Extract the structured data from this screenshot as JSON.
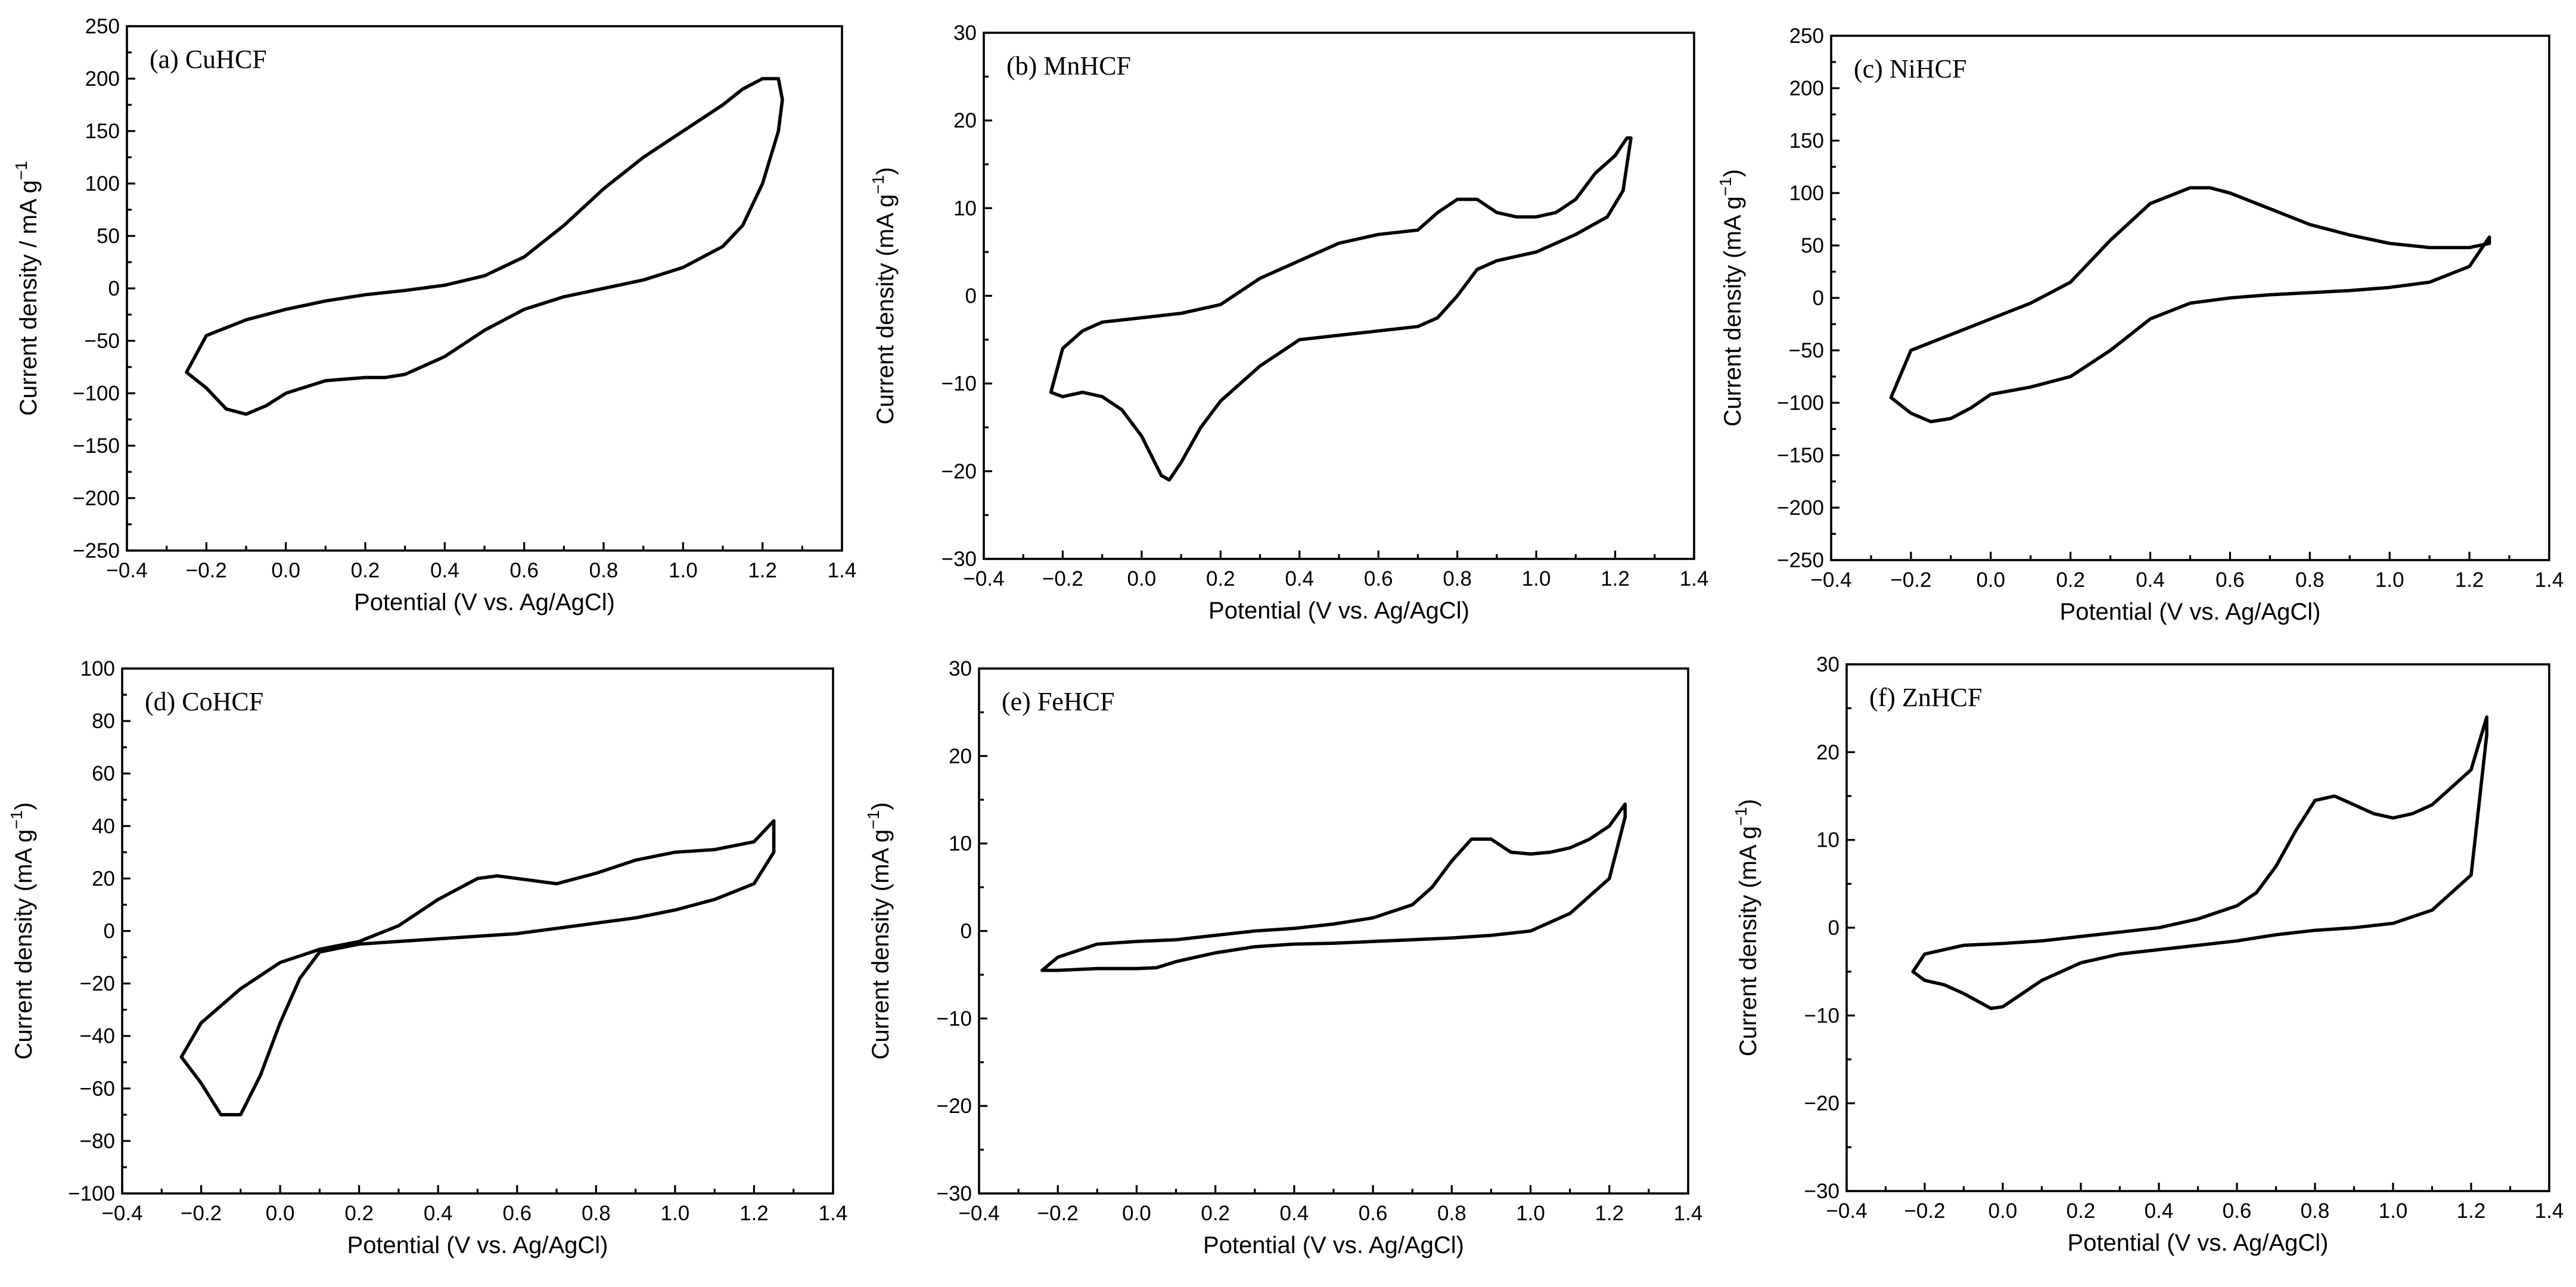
{
  "chart_data": [
    {
      "type": "line",
      "title": "(a) CuHCF",
      "xlabel": "Potential (V vs. Ag/AgCl)",
      "ylabel_main": "Current density / mA g",
      "ylabel_sup": "−1",
      "xlim": [
        -0.4,
        1.4
      ],
      "ylim": [
        -250,
        250
      ],
      "xticks": [
        -0.4,
        -0.2,
        0.0,
        0.2,
        0.4,
        0.6,
        0.8,
        1.0,
        1.2,
        1.4
      ],
      "yticks": [
        -250,
        -200,
        -150,
        -100,
        -50,
        0,
        50,
        100,
        150,
        200,
        250
      ],
      "xtick_labels": [
        "−0.4",
        "−0.2",
        "0.0",
        "0.2",
        "0.4",
        "0.6",
        "0.8",
        "1.0",
        "1.2",
        "1.4"
      ],
      "ytick_labels": [
        "−250",
        "−200",
        "−150",
        "−100",
        "−50",
        "0",
        "50",
        "100",
        "150",
        "200",
        "250"
      ],
      "series": [
        {
          "x": [
            -0.25,
            -0.2,
            -0.1,
            0.0,
            0.1,
            0.2,
            0.3,
            0.4,
            0.5,
            0.6,
            0.7,
            0.8,
            0.9,
            1.0,
            1.1,
            1.15,
            1.2,
            1.24,
            1.25,
            1.24,
            1.2,
            1.15,
            1.1,
            1.0,
            0.9,
            0.8,
            0.7,
            0.6,
            0.5,
            0.4,
            0.3,
            0.25,
            0.2,
            0.1,
            0.0,
            -0.05,
            -0.1,
            -0.15,
            -0.2,
            -0.25
          ],
          "y": [
            -80,
            -45,
            -30,
            -20,
            -12,
            -6,
            -2,
            3,
            12,
            30,
            60,
            95,
            125,
            150,
            175,
            190,
            200,
            200,
            180,
            150,
            100,
            60,
            40,
            20,
            8,
            0,
            -8,
            -20,
            -40,
            -65,
            -82,
            -85,
            -85,
            -88,
            -100,
            -112,
            -120,
            -115,
            -95,
            -80
          ]
        }
      ]
    },
    {
      "type": "line",
      "title": "(b) MnHCF",
      "xlabel": "Potential (V vs. Ag/AgCl)",
      "ylabel_main": "Current density (mA g",
      "ylabel_sup": "−1",
      "ylabel_close": ")",
      "xlim": [
        -0.4,
        1.4
      ],
      "ylim": [
        -30,
        30
      ],
      "xticks": [
        -0.4,
        -0.2,
        0.0,
        0.2,
        0.4,
        0.6,
        0.8,
        1.0,
        1.2,
        1.4
      ],
      "yticks": [
        -30,
        -20,
        -10,
        0,
        10,
        20,
        30
      ],
      "xtick_labels": [
        "−0.4",
        "−0.2",
        "0.0",
        "0.2",
        "0.4",
        "0.6",
        "0.8",
        "1.0",
        "1.2",
        "1.4"
      ],
      "ytick_labels": [
        "−30",
        "−20",
        "−10",
        "0",
        "10",
        "20",
        "30"
      ],
      "series": [
        {
          "x": [
            -0.23,
            -0.2,
            -0.15,
            -0.1,
            0.0,
            0.1,
            0.2,
            0.3,
            0.4,
            0.5,
            0.6,
            0.7,
            0.75,
            0.8,
            0.85,
            0.9,
            0.95,
            1.0,
            1.05,
            1.1,
            1.15,
            1.2,
            1.23,
            1.24,
            1.22,
            1.18,
            1.1,
            1.0,
            0.9,
            0.85,
            0.8,
            0.75,
            0.7,
            0.6,
            0.5,
            0.4,
            0.3,
            0.2,
            0.15,
            0.1,
            0.07,
            0.05,
            0.0,
            -0.05,
            -0.1,
            -0.15,
            -0.2,
            -0.23
          ],
          "y": [
            -11,
            -6,
            -4,
            -3,
            -2.5,
            -2,
            -1,
            2,
            4,
            6,
            7,
            7.5,
            9.5,
            11,
            11,
            9.5,
            9,
            9,
            9.5,
            11,
            14,
            16,
            18,
            18,
            12,
            9,
            7,
            5,
            4,
            3,
            0,
            -2.5,
            -3.5,
            -4,
            -4.5,
            -5,
            -8,
            -12,
            -15,
            -19,
            -21,
            -20.5,
            -16,
            -13,
            -11.5,
            -11,
            -11.5,
            -11
          ]
        }
      ]
    },
    {
      "type": "line",
      "title": "(c) NiHCF",
      "xlabel": "Potential (V vs. Ag/AgCl)",
      "ylabel_main": "Current density (mA g",
      "ylabel_sup": "−1",
      "ylabel_close": ")",
      "xlim": [
        -0.4,
        1.4
      ],
      "ylim": [
        -250,
        250
      ],
      "xticks": [
        -0.4,
        -0.2,
        0.0,
        0.2,
        0.4,
        0.6,
        0.8,
        1.0,
        1.2,
        1.4
      ],
      "yticks": [
        -250,
        -200,
        -150,
        -100,
        -50,
        0,
        50,
        100,
        150,
        200,
        250
      ],
      "xtick_labels": [
        "−0.4",
        "−0.2",
        "0.0",
        "0.2",
        "0.4",
        "0.6",
        "0.8",
        "1.0",
        "1.2",
        "1.4"
      ],
      "ytick_labels": [
        "−250",
        "−200",
        "−150",
        "−100",
        "−50",
        "0",
        "50",
        "100",
        "150",
        "200",
        "250"
      ],
      "series": [
        {
          "x": [
            -0.25,
            -0.2,
            -0.1,
            0.0,
            0.1,
            0.2,
            0.3,
            0.4,
            0.5,
            0.55,
            0.6,
            0.7,
            0.8,
            0.9,
            1.0,
            1.1,
            1.2,
            1.25,
            1.25,
            1.2,
            1.1,
            1.0,
            0.9,
            0.8,
            0.7,
            0.6,
            0.5,
            0.4,
            0.3,
            0.2,
            0.1,
            0.0,
            -0.05,
            -0.1,
            -0.15,
            -0.2,
            -0.25
          ],
          "y": [
            -95,
            -50,
            -35,
            -20,
            -5,
            15,
            55,
            90,
            105,
            105,
            100,
            85,
            70,
            60,
            52,
            48,
            48,
            52,
            58,
            30,
            15,
            10,
            7,
            5,
            3,
            0,
            -5,
            -20,
            -50,
            -75,
            -85,
            -92,
            -105,
            -115,
            -118,
            -110,
            -95
          ]
        }
      ]
    },
    {
      "type": "line",
      "title": "(d) CoHCF",
      "xlabel": "Potential (V vs. Ag/AgCl)",
      "ylabel_main": "Current density (mA g",
      "ylabel_sup": "−1",
      "ylabel_close": ")",
      "xlim": [
        -0.4,
        1.4
      ],
      "ylim": [
        -100,
        100
      ],
      "xticks": [
        -0.4,
        -0.2,
        0.0,
        0.2,
        0.4,
        0.6,
        0.8,
        1.0,
        1.2,
        1.4
      ],
      "yticks": [
        -100,
        -80,
        -60,
        -40,
        -20,
        0,
        20,
        40,
        60,
        80,
        100
      ],
      "xtick_labels": [
        "−0.4",
        "−0.2",
        "0.0",
        "0.2",
        "0.4",
        "0.6",
        "0.8",
        "1.0",
        "1.2",
        "1.4"
      ],
      "ytick_labels": [
        "−100",
        "−80",
        "−60",
        "−40",
        "−20",
        "0",
        "20",
        "40",
        "60",
        "80",
        "100"
      ],
      "series": [
        {
          "x": [
            -0.25,
            -0.2,
            -0.1,
            0.0,
            0.1,
            0.2,
            0.3,
            0.4,
            0.5,
            0.55,
            0.6,
            0.7,
            0.8,
            0.9,
            1.0,
            1.1,
            1.2,
            1.25,
            1.25,
            1.2,
            1.1,
            1.0,
            0.9,
            0.8,
            0.7,
            0.6,
            0.5,
            0.4,
            0.3,
            0.2,
            0.1,
            0.05,
            0.0,
            -0.05,
            -0.1,
            -0.15,
            -0.2,
            -0.25
          ],
          "y": [
            -48,
            -35,
            -22,
            -12,
            -7,
            -4,
            2,
            12,
            20,
            21,
            20,
            18,
            22,
            27,
            30,
            31,
            34,
            42,
            30,
            18,
            12,
            8,
            5,
            3,
            1,
            -1,
            -2,
            -3,
            -4,
            -5,
            -8,
            -18,
            -35,
            -55,
            -70,
            -70,
            -58,
            -48
          ]
        }
      ]
    },
    {
      "type": "line",
      "title": "(e) FeHCF",
      "xlabel": "Potential (V vs. Ag/AgCl)",
      "ylabel_main": "Current density (mA g",
      "ylabel_sup": "−1",
      "ylabel_close": ")",
      "xlim": [
        -0.4,
        1.4
      ],
      "ylim": [
        -30,
        30
      ],
      "xticks": [
        -0.4,
        -0.2,
        0.0,
        0.2,
        0.4,
        0.6,
        0.8,
        1.0,
        1.2,
        1.4
      ],
      "yticks": [
        -30,
        -20,
        -10,
        0,
        10,
        20,
        30
      ],
      "xtick_labels": [
        "−0.4",
        "−0.2",
        "0.0",
        "0.2",
        "0.4",
        "0.6",
        "0.8",
        "1.0",
        "1.2",
        "1.4"
      ],
      "ytick_labels": [
        "−30",
        "−20",
        "−10",
        "0",
        "10",
        "20",
        "30"
      ],
      "series": [
        {
          "x": [
            -0.24,
            -0.2,
            -0.1,
            0.0,
            0.1,
            0.2,
            0.3,
            0.4,
            0.5,
            0.6,
            0.7,
            0.75,
            0.8,
            0.85,
            0.9,
            0.95,
            1.0,
            1.05,
            1.1,
            1.15,
            1.2,
            1.24,
            1.24,
            1.2,
            1.1,
            1.0,
            0.9,
            0.8,
            0.7,
            0.6,
            0.5,
            0.4,
            0.3,
            0.2,
            0.15,
            0.1,
            0.05,
            0.0,
            -0.1,
            -0.2,
            -0.24
          ],
          "y": [
            -4.5,
            -3,
            -1.5,
            -1.2,
            -1,
            -0.5,
            0,
            0.3,
            0.8,
            1.5,
            3,
            5,
            8,
            10.5,
            10.5,
            9,
            8.8,
            9,
            9.5,
            10.5,
            12,
            14.5,
            13,
            6,
            2,
            0,
            -0.5,
            -0.8,
            -1,
            -1.2,
            -1.4,
            -1.5,
            -1.8,
            -2.5,
            -3,
            -3.5,
            -4.2,
            -4.3,
            -4.3,
            -4.5,
            -4.5
          ]
        }
      ]
    },
    {
      "type": "line",
      "title": "(f) ZnHCF",
      "xlabel": "Potential (V vs. Ag/AgCl)",
      "ylabel_main": "Current density (mA g",
      "ylabel_sup": "−1",
      "ylabel_close": ")",
      "xlim": [
        -0.4,
        1.4
      ],
      "ylim": [
        -30,
        30
      ],
      "xticks": [
        -0.4,
        -0.2,
        0.0,
        0.2,
        0.4,
        0.6,
        0.8,
        1.0,
        1.2,
        1.4
      ],
      "yticks": [
        -30,
        -20,
        -10,
        0,
        10,
        20,
        30
      ],
      "xtick_labels": [
        "−0.4",
        "−0.2",
        "0.0",
        "0.2",
        "0.4",
        "0.6",
        "0.8",
        "1.0",
        "1.2",
        "1.4"
      ],
      "ytick_labels": [
        "−30",
        "−20",
        "−10",
        "0",
        "10",
        "20",
        "30"
      ],
      "series": [
        {
          "x": [
            -0.23,
            -0.2,
            -0.1,
            0.0,
            0.1,
            0.2,
            0.3,
            0.4,
            0.5,
            0.6,
            0.65,
            0.7,
            0.75,
            0.8,
            0.85,
            0.9,
            0.95,
            1.0,
            1.05,
            1.1,
            1.15,
            1.2,
            1.22,
            1.24,
            1.24,
            1.2,
            1.1,
            1.0,
            0.9,
            0.8,
            0.7,
            0.6,
            0.5,
            0.4,
            0.3,
            0.2,
            0.1,
            0.05,
            0.0,
            -0.03,
            -0.1,
            -0.15,
            -0.2,
            -0.23
          ],
          "y": [
            -5,
            -3,
            -2,
            -1.8,
            -1.5,
            -1,
            -0.5,
            0,
            1,
            2.5,
            4,
            7,
            11,
            14.5,
            15,
            14,
            13,
            12.5,
            13,
            14,
            16,
            18,
            21,
            24,
            22,
            6,
            2,
            0.5,
            0,
            -0.3,
            -0.8,
            -1.5,
            -2,
            -2.5,
            -3,
            -4,
            -6,
            -7.5,
            -9,
            -9.2,
            -7.5,
            -6.5,
            -6,
            -5
          ]
        }
      ]
    }
  ]
}
